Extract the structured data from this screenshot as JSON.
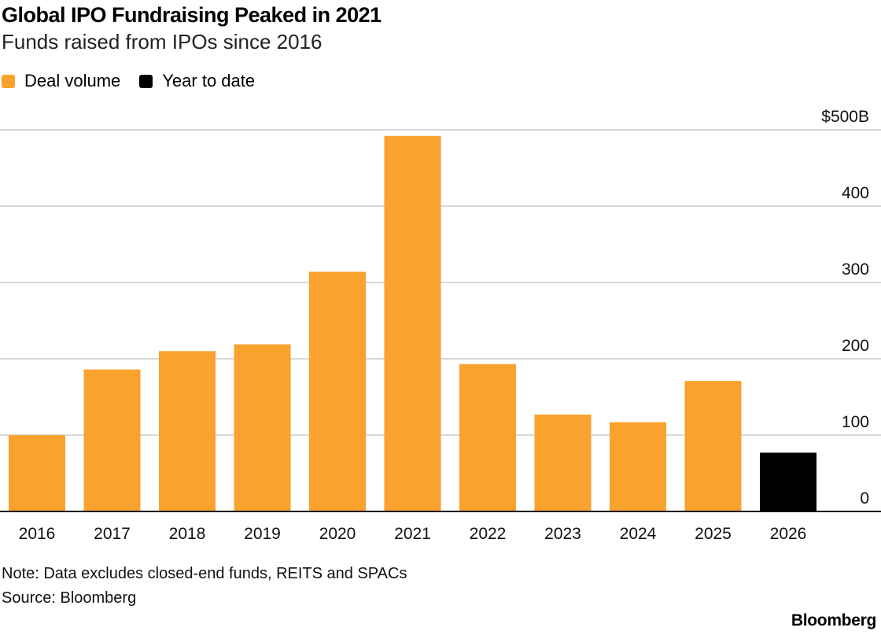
{
  "header": {
    "title": "Global IPO Fundraising Peaked in 2021",
    "subtitle": "Funds raised from IPOs since 2016"
  },
  "legend": [
    {
      "label": "Deal volume",
      "color": "#F9A22D"
    },
    {
      "label": "Year to date",
      "color": "#000000"
    }
  ],
  "footer": {
    "note": "Note: Data excludes closed-end funds, REITS and SPACs",
    "source": "Source: Bloomberg",
    "brand": "Bloomberg"
  },
  "chart_data": {
    "type": "bar",
    "title": "Global IPO Fundraising Peaked in 2021",
    "subtitle": "Funds raised from IPOs since 2016",
    "categories": [
      "2016",
      "2017",
      "2018",
      "2019",
      "2020",
      "2021",
      "2022",
      "2023",
      "2024",
      "2025",
      "2026"
    ],
    "series": [
      {
        "name": "Deal volume",
        "color": "#F9A22D",
        "values": [
          100,
          186,
          210,
          219,
          314,
          492,
          193,
          127,
          117,
          171,
          null
        ]
      },
      {
        "name": "Year to date",
        "color": "#000000",
        "values": [
          null,
          null,
          null,
          null,
          null,
          null,
          null,
          null,
          null,
          null,
          77
        ]
      }
    ],
    "ylim": [
      0,
      500
    ],
    "yticks": [
      0,
      100,
      200,
      300,
      400,
      500
    ],
    "ytick_labels": [
      "0",
      "100",
      "200",
      "300",
      "400",
      "$500B"
    ],
    "y_axis_position": "right",
    "grid": true,
    "legend_position": "top-left"
  }
}
